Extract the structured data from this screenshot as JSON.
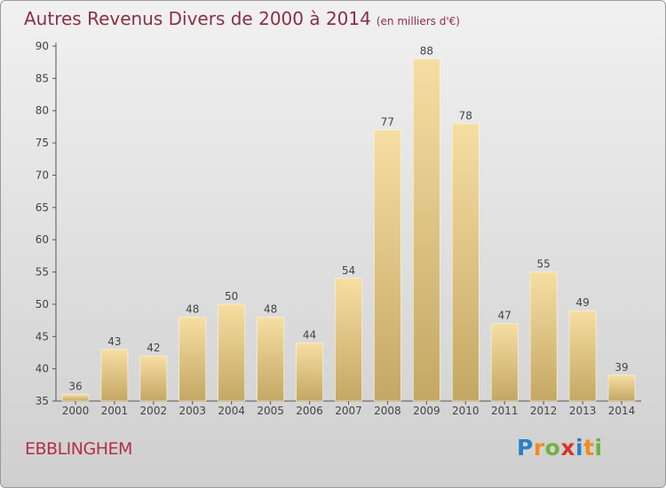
{
  "chart_data": {
    "type": "bar",
    "title": "Autres Revenus Divers de 2000 à 2014",
    "subtitle": "(en milliers d'€)",
    "categories": [
      "2000",
      "2001",
      "2002",
      "2003",
      "2004",
      "2005",
      "2006",
      "2007",
      "2008",
      "2009",
      "2010",
      "2011",
      "2012",
      "2013",
      "2014"
    ],
    "values": [
      36,
      43,
      42,
      48,
      50,
      48,
      44,
      54,
      77,
      88,
      78,
      47,
      55,
      49,
      39
    ],
    "ylim": [
      35,
      90
    ],
    "yticks": [
      35,
      40,
      45,
      50,
      55,
      60,
      65,
      70,
      75,
      80,
      85,
      90
    ],
    "grid": false,
    "bar_color_top": "#f6dea2",
    "bar_color_bottom": "#c4a764"
  },
  "place_name": "EBBLINGHEM",
  "brand": {
    "letters": [
      "P",
      "r",
      "o",
      "x",
      "i",
      "t",
      "i"
    ],
    "colors": [
      "#2a7fc9",
      "#f08c1e",
      "#6cb33f",
      "#d8352b",
      "#2a7fc9",
      "#f08c1e",
      "#6cb33f"
    ]
  }
}
